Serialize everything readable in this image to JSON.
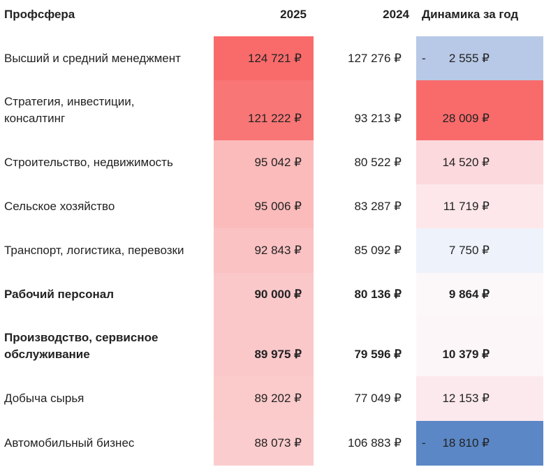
{
  "headers": {
    "profession": "Профсфера",
    "y2025": "2025",
    "y2024": "2024",
    "dynamics": "Динамика за год"
  },
  "rows": [
    {
      "name": "Высший и средний менеджмент",
      "v2025": "124 721 ₽",
      "v2024": "127 276 ₽",
      "sign": "-",
      "dyn": "2 555 ₽",
      "bold": false,
      "bg2025": "#f96b6b",
      "bgdyn": "#b7c9e6"
    },
    {
      "name": "Стратегия, инвестиции, консалтинг",
      "v2025": "121 222 ₽",
      "v2024": "93 213 ₽",
      "sign": "",
      "dyn": "28 009 ₽",
      "bold": false,
      "bg2025": "#f97676",
      "bgdyn": "#f96b6b"
    },
    {
      "name": "Строительство, недвижимость",
      "v2025": "95 042 ₽",
      "v2024": "80 522 ₽",
      "sign": "",
      "dyn": "14 520 ₽",
      "bold": false,
      "bg2025": "#fbbbbb",
      "bgdyn": "#fcd9dc"
    },
    {
      "name": "Сельское хозяйство",
      "v2025": "95 006 ₽",
      "v2024": "83 287 ₽",
      "sign": "",
      "dyn": "11 719 ₽",
      "bold": false,
      "bg2025": "#fbbbbb",
      "bgdyn": "#fde7ea"
    },
    {
      "name": "Транспорт, логистика, перевозки",
      "v2025": "92 843 ₽",
      "v2024": "85 092 ₽",
      "sign": "",
      "dyn": "7 750 ₽",
      "bold": false,
      "bg2025": "#fbc2c3",
      "bgdyn": "#eef2fa"
    },
    {
      "name": "Рабочий персонал",
      "v2025": "90 000 ₽",
      "v2024": "80 136 ₽",
      "sign": "",
      "dyn": "9 864 ₽",
      "bold": true,
      "bg2025": "#fbc8ca",
      "bgdyn": "#fcf8fa"
    },
    {
      "name": "Производство, сервисное обслуживание",
      "v2025": "89 975 ₽",
      "v2024": "79 596 ₽",
      "sign": "",
      "dyn": "10 379 ₽",
      "bold": true,
      "bg2025": "#fbc8ca",
      "bgdyn": "#fcf6f8"
    },
    {
      "name": "Добыча сырья",
      "v2025": "89 202 ₽",
      "v2024": "77 049 ₽",
      "sign": "",
      "dyn": "12 153 ₽",
      "bold": false,
      "bg2025": "#fbcaca",
      "bgdyn": "#fce9ed"
    },
    {
      "name": "Автомобильный бизнес",
      "v2025": "88 073 ₽",
      "v2024": "106 883 ₽",
      "sign": "-",
      "dyn": "18 810 ₽",
      "bold": false,
      "bg2025": "#fbcccd",
      "bgdyn": "#5b87c6"
    }
  ]
}
